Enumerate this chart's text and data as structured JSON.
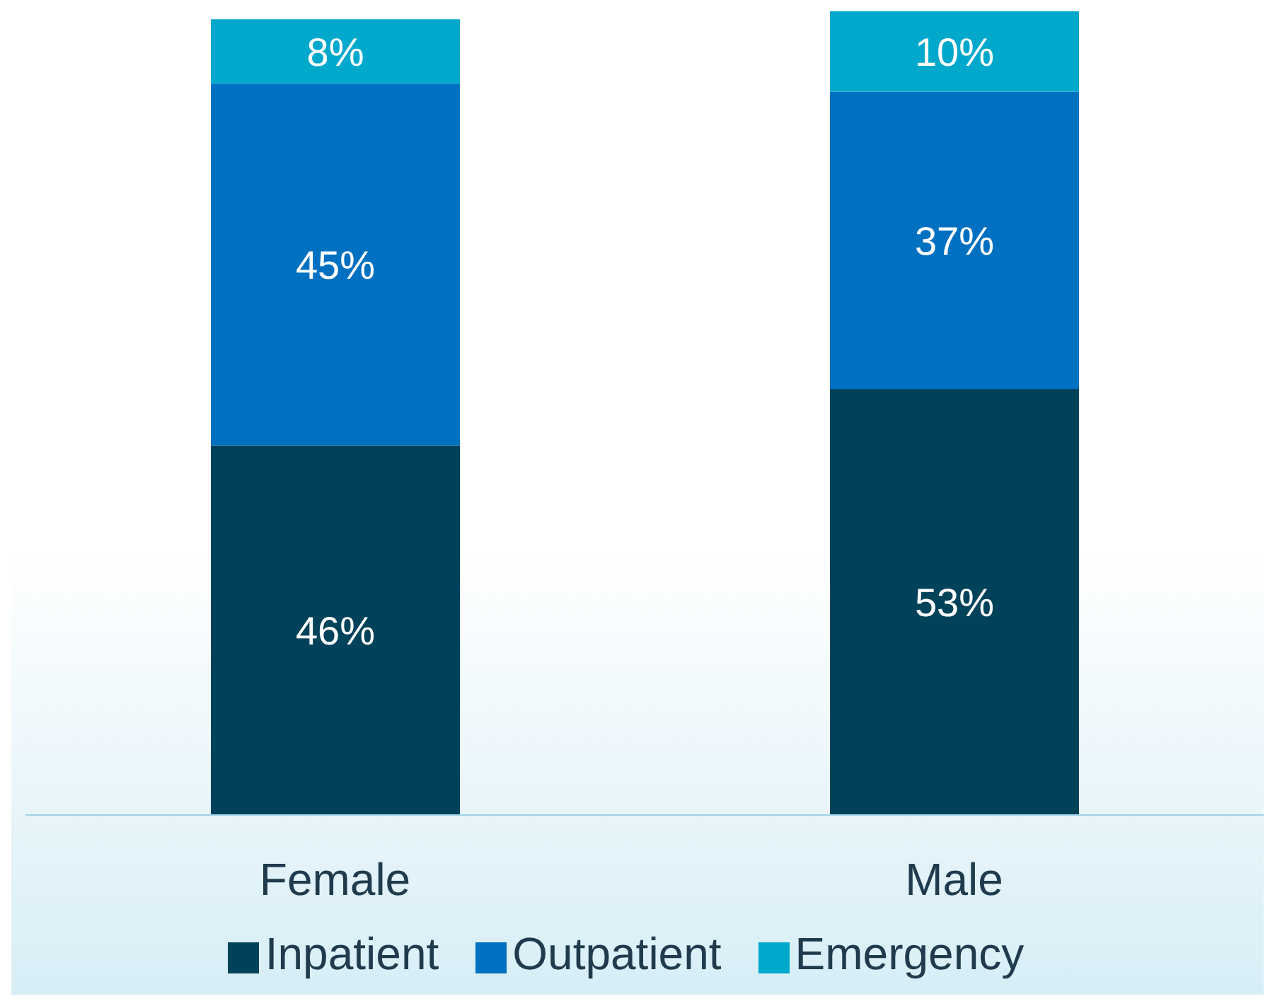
{
  "chart_data": {
    "type": "bar",
    "stacked": true,
    "categories": [
      "Female",
      "Male"
    ],
    "series": [
      {
        "name": "Inpatient",
        "color": "#00425a",
        "values": [
          46,
          53
        ],
        "value_labels": [
          "46%",
          "53%"
        ]
      },
      {
        "name": "Outpatient",
        "color": "#0070c0",
        "values": [
          45,
          37
        ],
        "value_labels": [
          "45%",
          "37%"
        ]
      },
      {
        "name": "Emergency",
        "color": "#00a8cc",
        "values": [
          8,
          10
        ],
        "value_labels": [
          "8%",
          "10%"
        ]
      }
    ],
    "legend": "bottom"
  }
}
